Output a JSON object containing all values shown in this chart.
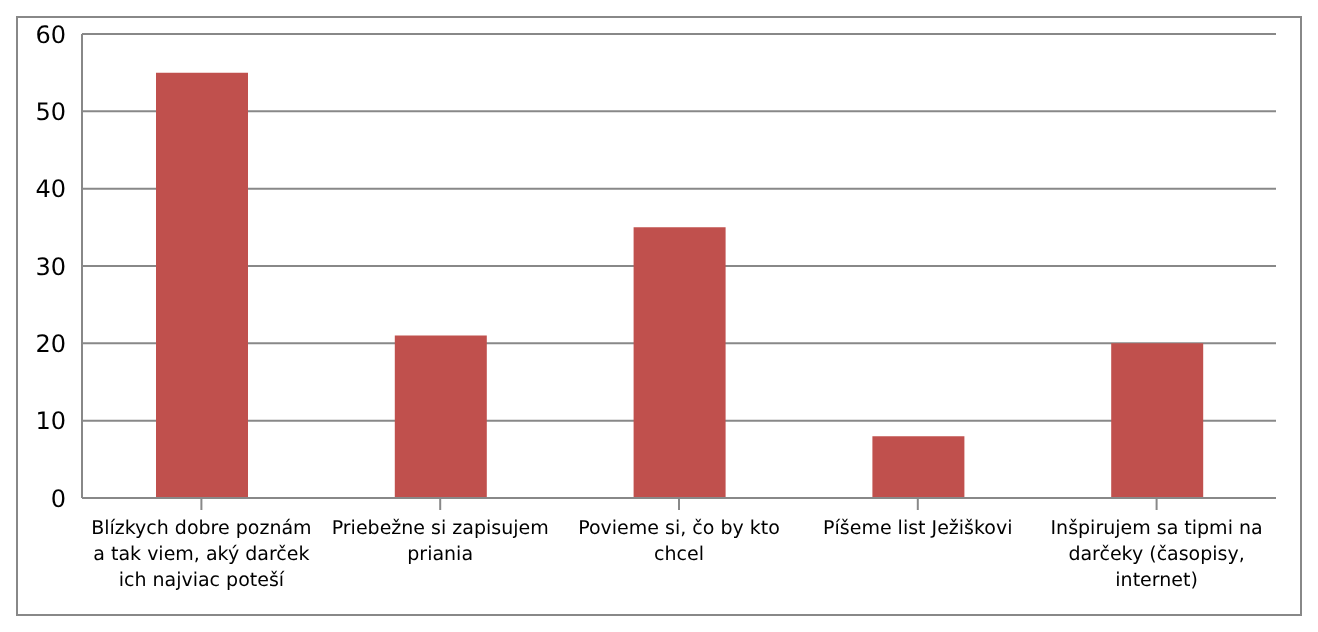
{
  "chart_data": {
    "type": "bar",
    "categories": [
      "Blízkych dobre poznám a tak viem, aký darček ich najviac poteší",
      "Priebežne si zapisujem priania",
      "Povieme si, čo by kto chcel",
      "Píšeme list Ježiškovi",
      "Inšpirujem sa tipmi na darčeky (časopisy, internet)"
    ],
    "values": [
      55,
      21,
      35,
      8,
      20
    ],
    "color": "#c0504d",
    "ylim": [
      0,
      60
    ],
    "yticks": [
      0,
      10,
      20,
      30,
      40,
      50,
      60
    ],
    "grid": "y",
    "legend": false
  }
}
